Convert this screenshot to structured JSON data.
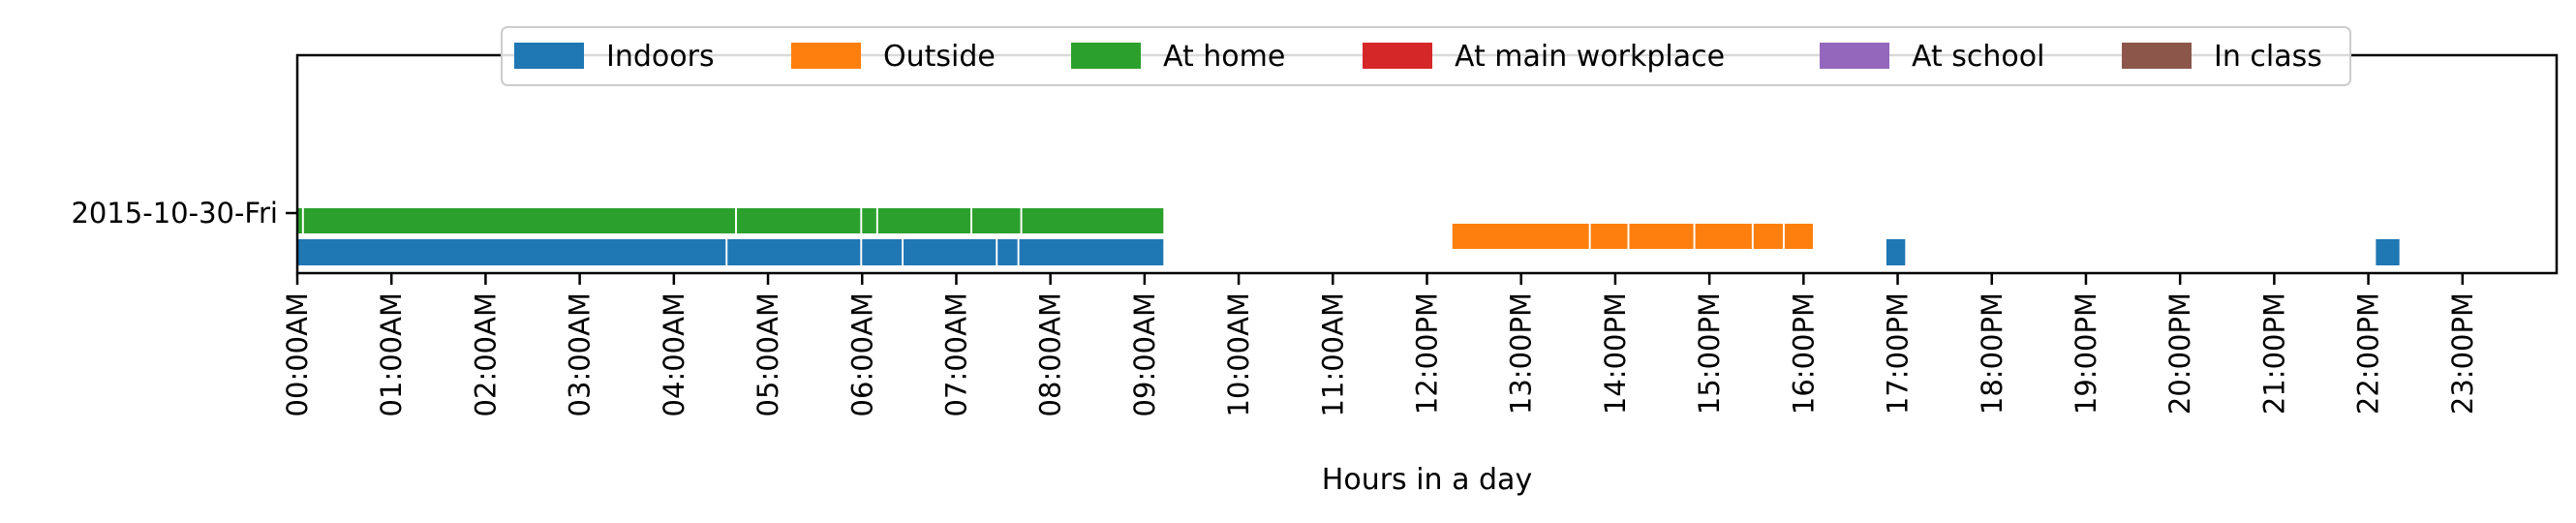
{
  "chart_data": {
    "type": "timeline",
    "xlabel": "Hours in a day",
    "xlim": [
      0,
      24
    ],
    "x_ticks": [
      {
        "value": 0,
        "label": "00:00AM"
      },
      {
        "value": 1,
        "label": "01:00AM"
      },
      {
        "value": 2,
        "label": "02:00AM"
      },
      {
        "value": 3,
        "label": "03:00AM"
      },
      {
        "value": 4,
        "label": "04:00AM"
      },
      {
        "value": 5,
        "label": "05:00AM"
      },
      {
        "value": 6,
        "label": "06:00AM"
      },
      {
        "value": 7,
        "label": "07:00AM"
      },
      {
        "value": 8,
        "label": "08:00AM"
      },
      {
        "value": 9,
        "label": "09:00AM"
      },
      {
        "value": 10,
        "label": "10:00AM"
      },
      {
        "value": 11,
        "label": "11:00AM"
      },
      {
        "value": 12,
        "label": "12:00PM"
      },
      {
        "value": 13,
        "label": "13:00PM"
      },
      {
        "value": 14,
        "label": "14:00PM"
      },
      {
        "value": 15,
        "label": "15:00PM"
      },
      {
        "value": 16,
        "label": "16:00PM"
      },
      {
        "value": 17,
        "label": "17:00PM"
      },
      {
        "value": 18,
        "label": "18:00PM"
      },
      {
        "value": 19,
        "label": "19:00PM"
      },
      {
        "value": 20,
        "label": "20:00PM"
      },
      {
        "value": 21,
        "label": "21:00PM"
      },
      {
        "value": 22,
        "label": "22:00PM"
      },
      {
        "value": 23,
        "label": "23:00PM"
      }
    ],
    "y_categories": [
      "2015-10-30-Fri"
    ],
    "legend": {
      "position": "top-center",
      "entries": [
        {
          "name": "Indoors",
          "color": "#1f77b4"
        },
        {
          "name": "Outside",
          "color": "#ff7f0e"
        },
        {
          "name": "At home",
          "color": "#2ca02c"
        },
        {
          "name": "At main workplace",
          "color": "#d62728"
        },
        {
          "name": "At school",
          "color": "#9467bd"
        },
        {
          "name": "In class",
          "color": "#8c564b"
        }
      ]
    },
    "series": [
      {
        "name": "At home",
        "color": "#2ca02c",
        "day": "2015-10-30-Fri",
        "segments": [
          [
            0.0,
            0.05
          ],
          [
            0.07,
            4.65
          ],
          [
            4.67,
            5.98
          ],
          [
            6.0,
            6.15
          ],
          [
            6.17,
            7.15
          ],
          [
            7.17,
            7.68
          ],
          [
            7.7,
            9.2
          ]
        ]
      },
      {
        "name": "Indoors",
        "color": "#1f77b4",
        "day": "2015-10-30-Fri",
        "segments": [
          [
            0.0,
            4.55
          ],
          [
            4.57,
            5.98
          ],
          [
            6.0,
            6.42
          ],
          [
            6.44,
            7.42
          ],
          [
            7.44,
            7.65
          ],
          [
            7.67,
            9.2
          ],
          [
            16.88,
            17.08
          ],
          [
            22.08,
            22.33
          ]
        ]
      },
      {
        "name": "Outside",
        "color": "#ff7f0e",
        "day": "2015-10-30-Fri",
        "segments": [
          [
            12.27,
            13.72
          ],
          [
            13.74,
            14.13
          ],
          [
            14.15,
            14.83
          ],
          [
            14.85,
            15.45
          ],
          [
            15.47,
            15.78
          ],
          [
            15.8,
            16.1
          ]
        ]
      }
    ],
    "grid": false
  }
}
